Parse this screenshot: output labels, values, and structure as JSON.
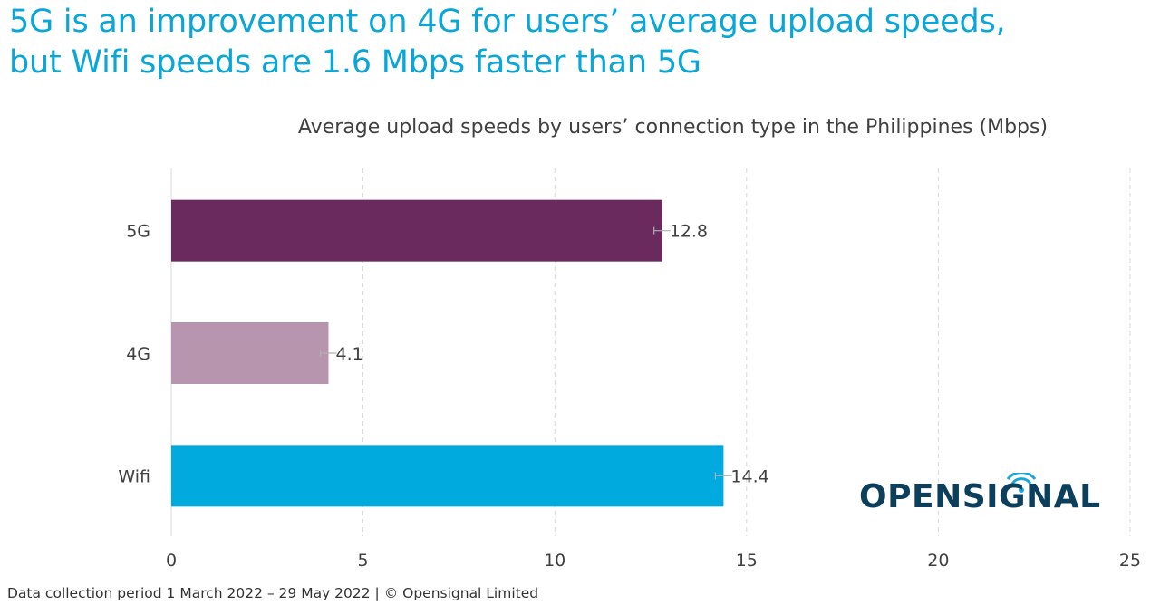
{
  "headline": {
    "line1": "5G is an improvement on 4G for users’ average upload speeds,",
    "line2": "but Wifi speeds are 1.6 Mbps faster than 5G"
  },
  "footer": "Data collection period 1 March 2022 –  29 May 2022  |  © Opensignal Limited",
  "logo_text": "OPENSIGNAL",
  "colors": {
    "headline": "#0aa6d8",
    "logo": "#0b3f5c"
  },
  "chart_data": {
    "type": "bar",
    "orientation": "horizontal",
    "title": "Average upload speeds by users’ connection type in the Philippines (Mbps)",
    "categories": [
      "5G",
      "4G",
      "Wifi"
    ],
    "values": [
      12.8,
      4.1,
      14.4
    ],
    "value_labels": [
      "12.8",
      "4.1",
      "14.4"
    ],
    "colors": [
      "#6b2a5e",
      "#b895ae",
      "#00aadf"
    ],
    "xlim": [
      0,
      25
    ],
    "xticks": [
      0,
      5,
      10,
      15,
      20,
      25
    ],
    "xtick_labels": [
      "0",
      "5",
      "10",
      "15",
      "20",
      "25"
    ],
    "grid": "vertical dashed",
    "error_bars": true
  }
}
